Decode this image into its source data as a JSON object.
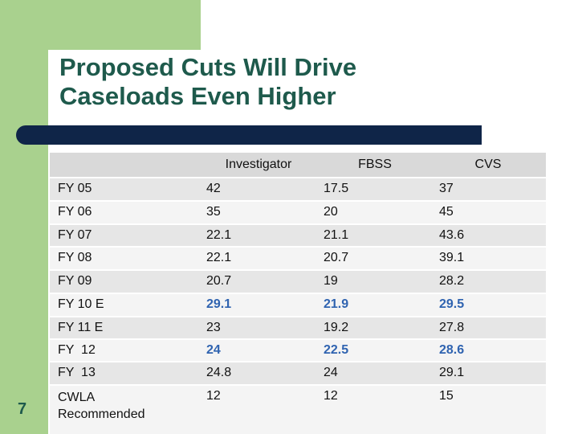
{
  "slide": {
    "title_lines": [
      "Proposed Cuts Will Drive",
      "Caseloads Even Higher"
    ],
    "page_number": "7"
  },
  "table": {
    "header": [
      "",
      "Investigator",
      "FBSS",
      "CVS"
    ],
    "rows": [
      [
        "FY 05",
        "42",
        "17.5",
        "37"
      ],
      [
        "FY 06",
        "35",
        "20",
        "45"
      ],
      [
        "FY 07",
        "22.1",
        "21.1",
        "43.6"
      ],
      [
        "FY 08",
        "22.1",
        "20.7",
        "39.1"
      ],
      [
        "FY 09",
        "20.7",
        "19",
        "28.2"
      ],
      [
        "FY 10 E",
        "29.1",
        "21.9",
        "29.5"
      ],
      [
        "FY 11 E",
        "23",
        "19.2",
        "27.8"
      ],
      [
        "FY  12",
        "24",
        "22.5",
        "28.6"
      ],
      [
        "FY  13",
        "24.8",
        "24",
        "29.1"
      ],
      [
        "CWLA Recommended",
        "12",
        "12",
        "15"
      ]
    ]
  }
}
